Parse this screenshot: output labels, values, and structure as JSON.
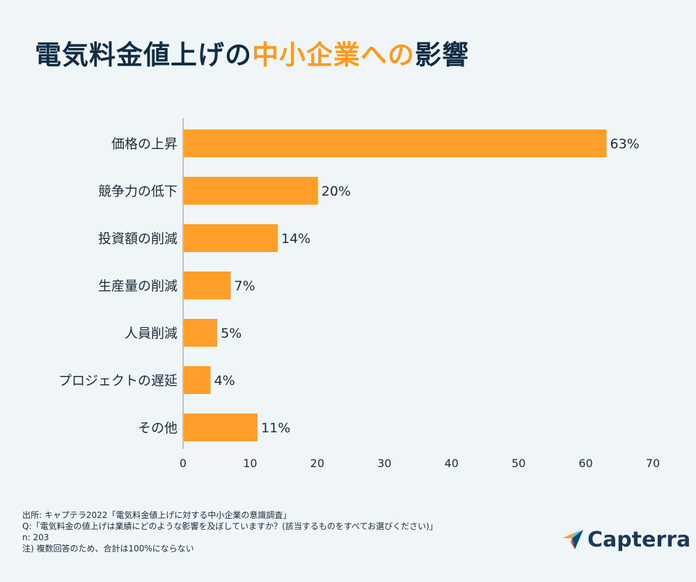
{
  "title": {
    "part1": "電気料金値上げの",
    "accent": "中小企業への",
    "part2": "影響"
  },
  "chart_data": {
    "type": "bar",
    "orientation": "horizontal",
    "categories": [
      "価格の上昇",
      "競争力の低下",
      "投資額の削減",
      "生産量の削減",
      "人員削減",
      "プロジェクトの遅延",
      "その他"
    ],
    "values": [
      63,
      20,
      14,
      7,
      5,
      4,
      11
    ],
    "value_labels": [
      "63%",
      "20%",
      "14%",
      "7%",
      "5%",
      "4%",
      "11%"
    ],
    "xlim": [
      0,
      70
    ],
    "xticks": [
      "0",
      "10",
      "20",
      "30",
      "40",
      "50",
      "60",
      "70"
    ],
    "bar_color": "#ff9f2a",
    "grid": false
  },
  "footer": {
    "source": "出所: キャプテラ2022「電気料金値上げに対する中小企業の意識調査」",
    "question": "Q:「電気料金の値上げは業績にどのような影響を及ぼしていますか？(該当するものをすべてお選びください)」",
    "n": "n: 203",
    "note": "注)  複数回答のため、合計は100%にならない"
  },
  "logo": {
    "text": "Capterra",
    "icon": "capterra-logo-icon"
  }
}
